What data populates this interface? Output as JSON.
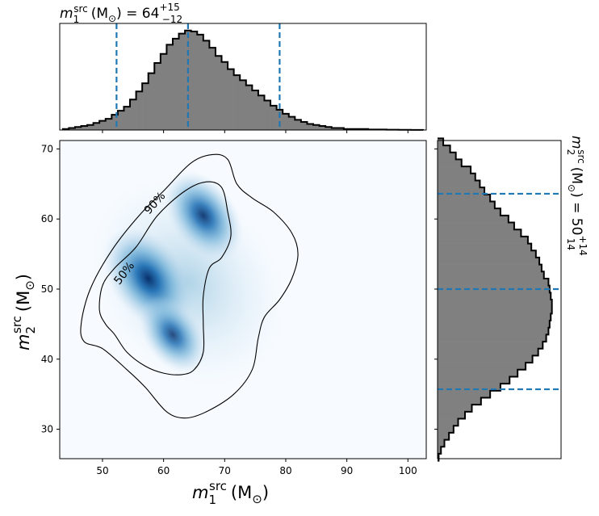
{
  "chart_data": [
    {
      "type": "heatmap",
      "panel": "joint",
      "x_label_sym": "m",
      "x_label_sub": "1",
      "x_label_sup": "src",
      "x_label_unit": "(M",
      "x_label_unit_sub": "⊙",
      "x_label_close": ")",
      "y_label_sym": "m",
      "y_label_sub": "2",
      "y_label_sup": "src",
      "y_label_unit": "(M",
      "y_label_unit_sub": "⊙",
      "y_label_close": ")",
      "xlim": [
        43,
        103
      ],
      "ylim": [
        25.8,
        71.2
      ],
      "xticks": [
        "50",
        "60",
        "70",
        "80",
        "90",
        "100"
      ],
      "yticks": [
        "30",
        "40",
        "50",
        "60",
        "70"
      ],
      "density_peaks": [
        {
          "x": 57.5,
          "y": 51.5,
          "weight": 1.0
        },
        {
          "x": 66.5,
          "y": 60.5,
          "weight": 0.85
        },
        {
          "x": 61.5,
          "y": 43.5,
          "weight": 0.7
        }
      ],
      "contours": [
        {
          "level": "50%",
          "label": "50%",
          "points": [
            [
              55.5,
              56
            ],
            [
              59,
              60.5
            ],
            [
              63.5,
              64
            ],
            [
              67,
              65.3
            ],
            [
              69.5,
              64.5
            ],
            [
              70.5,
              61
            ],
            [
              71,
              57.5
            ],
            [
              69.5,
              54.5
            ],
            [
              67.5,
              53
            ],
            [
              66.5,
              49
            ],
            [
              66.5,
              45
            ],
            [
              66.5,
              41
            ],
            [
              65,
              38.5
            ],
            [
              63,
              37.8
            ],
            [
              60,
              38
            ],
            [
              57,
              39
            ],
            [
              54,
              41
            ],
            [
              52,
              43.5
            ],
            [
              50.5,
              45
            ],
            [
              49.5,
              47
            ],
            [
              50,
              50.5
            ],
            [
              52,
              53
            ]
          ]
        },
        {
          "level": "90%",
          "label": "90%",
          "points": [
            [
              56,
              60.5
            ],
            [
              60,
              64
            ],
            [
              64.5,
              68
            ],
            [
              68,
              69.2
            ],
            [
              70.5,
              68.5
            ],
            [
              72,
              65
            ],
            [
              74.5,
              63
            ],
            [
              78,
              61
            ],
            [
              81,
              58
            ],
            [
              82,
              55
            ],
            [
              81,
              51.5
            ],
            [
              79,
              48.5
            ],
            [
              76.5,
              46
            ],
            [
              75.5,
              43
            ],
            [
              74.5,
              38.5
            ],
            [
              71.5,
              35
            ],
            [
              67,
              32.5
            ],
            [
              63.5,
              31.6
            ],
            [
              60.5,
              32.5
            ],
            [
              57,
              36
            ],
            [
              54,
              38.5
            ],
            [
              50,
              41.5
            ],
            [
              47,
              42.5
            ],
            [
              46.5,
              45
            ],
            [
              48,
              50
            ],
            [
              51.5,
              55.5
            ]
          ]
        }
      ]
    },
    {
      "type": "bar",
      "panel": "marginal-top",
      "title_sym": "m",
      "title_sub": "1",
      "title_sup": "src",
      "title_unit": "(M",
      "title_unit_sub": "⊙",
      "title_close": ") = 64",
      "title_plus": "+15",
      "title_minus": "−12",
      "median": 64,
      "interval": [
        52.3,
        79
      ],
      "x": [
        44,
        45,
        46,
        47,
        48,
        49,
        50,
        51,
        52,
        53,
        54,
        55,
        56,
        57,
        58,
        59,
        60,
        61,
        62,
        63,
        64,
        65,
        66,
        67,
        68,
        69,
        70,
        71,
        72,
        73,
        74,
        75,
        76,
        77,
        78,
        79,
        80,
        81,
        82,
        83,
        84,
        85,
        86,
        87,
        88,
        89,
        90,
        91,
        92,
        93,
        94,
        95,
        96,
        97,
        98,
        99,
        100,
        101,
        102
      ],
      "values": [
        1,
        2,
        3,
        4,
        5,
        7,
        9,
        11,
        15,
        19,
        23,
        30,
        38,
        46,
        56,
        66,
        75,
        84,
        90,
        95,
        98,
        97,
        94,
        88,
        81,
        73,
        67,
        60,
        54,
        49,
        44,
        39,
        34,
        29,
        24,
        20,
        16,
        13,
        10,
        8,
        6,
        5,
        4,
        3,
        2,
        2,
        1,
        1,
        1,
        1,
        0.5,
        0.5,
        0.5,
        0.3,
        0.3,
        0.2,
        0.2,
        0.1,
        0.1
      ],
      "ymax": 105
    },
    {
      "type": "bar",
      "panel": "marginal-right",
      "orientation": "horizontal",
      "title_sym": "m",
      "title_sub": "2",
      "title_sup": "src",
      "title_unit": "(M",
      "title_unit_sub": "⊙",
      "title_close": ") = 50",
      "title_plus": "+14",
      "title_minus": "14",
      "median": 50,
      "interval": [
        35.7,
        63.6
      ],
      "y": [
        26,
        27,
        28,
        29,
        30,
        31,
        32,
        33,
        34,
        35,
        36,
        37,
        38,
        39,
        40,
        41,
        42,
        43,
        44,
        45,
        46,
        47,
        48,
        49,
        50,
        51,
        52,
        53,
        54,
        55,
        56,
        57,
        58,
        59,
        60,
        61,
        62,
        63,
        64,
        65,
        66,
        67,
        68,
        69,
        70,
        71
      ],
      "values": [
        1,
        3,
        6,
        10,
        14,
        18,
        24,
        30,
        38,
        46,
        55,
        63,
        70,
        77,
        83,
        88,
        92,
        95,
        97,
        98,
        99,
        100,
        100,
        99,
        98,
        97,
        93,
        91,
        89,
        86,
        82,
        79,
        73,
        67,
        62,
        55,
        50,
        46,
        41,
        37,
        33,
        29,
        21,
        16,
        11,
        5
      ],
      "xmax": 108
    }
  ]
}
